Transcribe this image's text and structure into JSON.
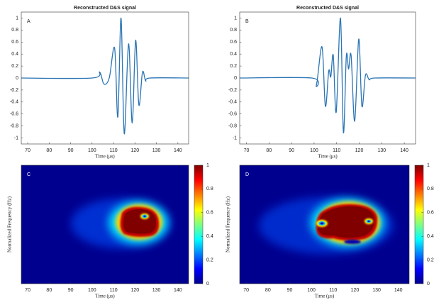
{
  "chart_data": [
    {
      "type": "line",
      "panel": "A",
      "title": "Reconstructed D&S signal",
      "xlabel": "Time (μs)",
      "color": "#2a74b4",
      "xlim": [
        67,
        145
      ],
      "xticks": [
        70,
        80,
        90,
        100,
        110,
        120,
        130,
        140
      ],
      "ylim": [
        -1.1,
        1.1
      ],
      "yticks": [
        -1,
        -0.8,
        -0.6,
        -0.4,
        -0.2,
        0,
        0.2,
        0.4,
        0.6,
        0.8,
        1
      ],
      "x": [
        67,
        100,
        103.5,
        105.5,
        108,
        110.5,
        112,
        113.5,
        115,
        117,
        118.7,
        120.3,
        121.8,
        123.5,
        125,
        127,
        145
      ],
      "y": [
        0,
        0,
        0.1,
        -0.1,
        0,
        0.5,
        -0.65,
        1,
        -0.93,
        0.57,
        -0.75,
        0.63,
        -0.45,
        0.1,
        -0.05,
        0,
        0
      ]
    },
    {
      "type": "line",
      "panel": "B",
      "title": "Reconstructed D&S signal",
      "xlabel": "Time (μs)",
      "color": "#2a74b4",
      "xlim": [
        67,
        145
      ],
      "xticks": [
        70,
        80,
        90,
        100,
        110,
        120,
        130,
        140
      ],
      "ylim": [
        -1.1,
        1.1
      ],
      "yticks": [
        -1,
        -0.8,
        -0.6,
        -0.4,
        -0.2,
        0,
        0.2,
        0.4,
        0.6,
        0.8,
        1
      ],
      "x": [
        67,
        99,
        101,
        103.5,
        105,
        106.5,
        107.4,
        108.5,
        109.8,
        111.7,
        113,
        114.3,
        115.3,
        116.4,
        118,
        119.8,
        121.2,
        122.8,
        124.5,
        127,
        145
      ],
      "y": [
        0,
        0,
        -0.12,
        0.52,
        -0.47,
        0.12,
        0.02,
        0.38,
        -0.57,
        1,
        -0.91,
        0.37,
        0.15,
        0.38,
        -0.72,
        0.65,
        -0.47,
        0.05,
        -0.03,
        0,
        0
      ]
    },
    {
      "type": "heatmap",
      "panel": "C",
      "xlabel": "Time (μs)",
      "ylabel": "Normalized Frequency (Hz)",
      "xlim": [
        67,
        145
      ],
      "xticks": [
        70,
        80,
        90,
        100,
        110,
        120,
        130,
        140
      ],
      "clim": [
        0,
        1
      ],
      "cticks": [
        0,
        0.2,
        0.4,
        0.6,
        0.8,
        1
      ]
    },
    {
      "type": "heatmap",
      "panel": "D",
      "xlabel": "Time (μs)",
      "ylabel": "Normalized Frequency (Hz)",
      "xlim": [
        67,
        145
      ],
      "xticks": [
        70,
        80,
        90,
        100,
        110,
        120,
        130,
        140
      ],
      "clim": [
        0,
        1
      ],
      "cticks": [
        0,
        0.2,
        0.4,
        0.6,
        0.8,
        1
      ]
    }
  ]
}
